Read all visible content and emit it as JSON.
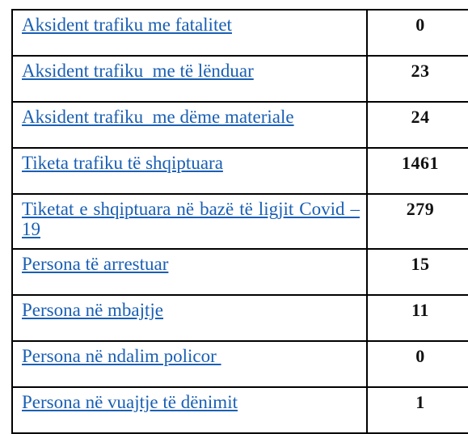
{
  "table": {
    "rows": [
      {
        "label": "Aksident trafiku me fatalitet",
        "value": "0"
      },
      {
        "label": "Aksident trafiku  me të lënduar",
        "value": "23"
      },
      {
        "label": "Aksident trafiku  me dëme materiale",
        "value": "24"
      },
      {
        "label": "Tiketa trafiku të shqiptuara",
        "value": "1461"
      },
      {
        "label": "Tiketat e shqiptuara në bazë të ligjit Covid – 19",
        "value": "279"
      },
      {
        "label": "Persona të arrestuar",
        "value": "15"
      },
      {
        "label": "Persona në mbajtje",
        "value": "11"
      },
      {
        "label": "Persona në ndalim policor ",
        "value": "0"
      },
      {
        "label": "Persona në vuajtje të dënimit",
        "value": "1"
      }
    ],
    "link_color": "#1a5fb4",
    "border_color": "#000000"
  }
}
